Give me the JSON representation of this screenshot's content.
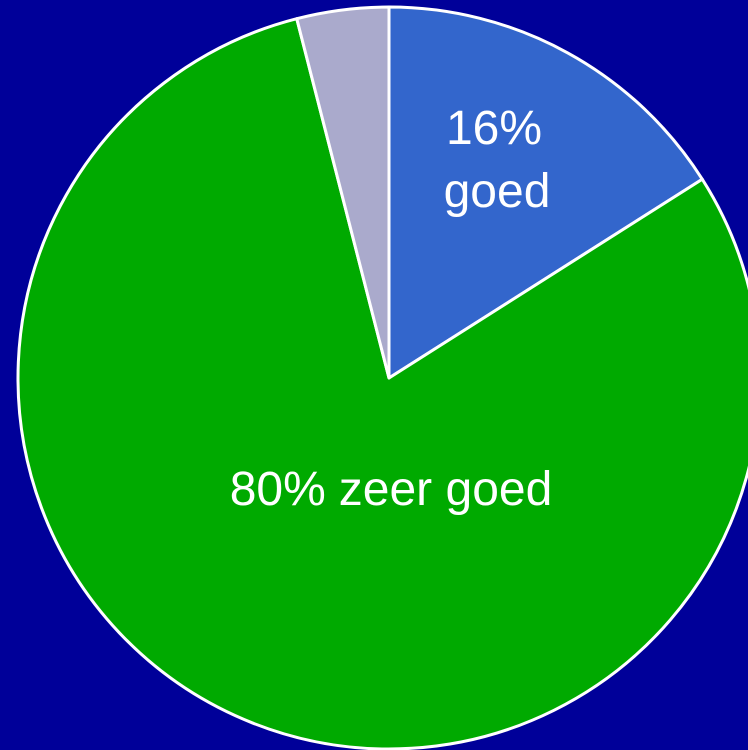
{
  "chart_data": {
    "type": "pie",
    "categories": [
      "goed",
      "zeer goed",
      null
    ],
    "values": [
      16,
      80,
      4
    ],
    "value_labels": [
      "16%",
      "80%",
      null
    ],
    "colors": [
      "#3366cc",
      "#00aa00",
      "#aaaacc"
    ]
  }
}
